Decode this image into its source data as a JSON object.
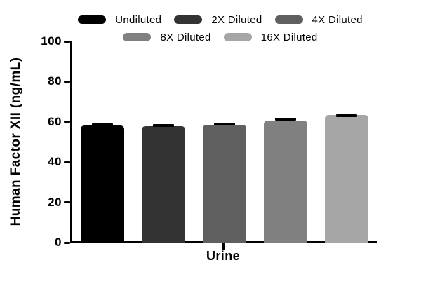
{
  "chart_data": {
    "type": "bar",
    "title": "",
    "ylabel": "Human Factor XII (ng/mL)",
    "xlabel": "",
    "categories": [
      "Urine"
    ],
    "ylim": [
      0,
      100
    ],
    "yticks": [
      0,
      20,
      40,
      60,
      80,
      100
    ],
    "grid": false,
    "legend_position": "top",
    "legend_rows": [
      3,
      2
    ],
    "series": [
      {
        "name": "Undiluted",
        "color": "#000000",
        "value": 58.1,
        "error": 1.3
      },
      {
        "name": "2X Diluted",
        "color": "#333333",
        "value": 57.9,
        "error": 1.0
      },
      {
        "name": "4X Diluted",
        "color": "#5f5f5f",
        "value": 58.6,
        "error": 1.0
      },
      {
        "name": "8X Diluted",
        "color": "#808080",
        "value": 60.6,
        "error": 1.4
      },
      {
        "name": "16X Diluted",
        "color": "#a6a6a6",
        "value": 63.3,
        "error": 0.6
      }
    ]
  },
  "style": {
    "axis_color": "#000000",
    "error_bar_color": "#000000",
    "background": "#ffffff"
  }
}
